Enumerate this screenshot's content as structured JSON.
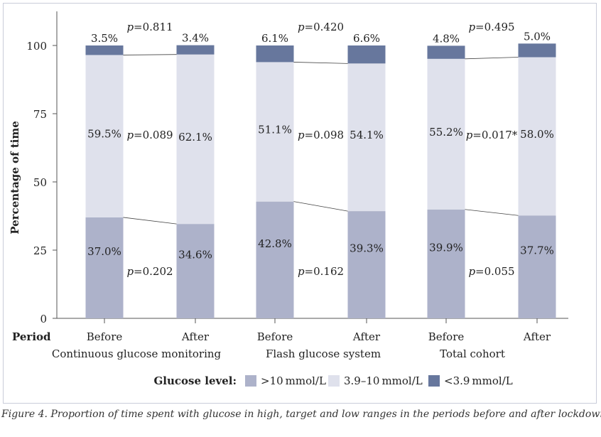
{
  "chart_data": {
    "type": "bar",
    "stacked": true,
    "ylabel": "Percentage of time",
    "ylim": [
      0,
      100
    ],
    "yticks": [
      0,
      25,
      50,
      75,
      100
    ],
    "period_label": "Period",
    "groups": [
      {
        "name": "Continuous glucose monitoring",
        "bars": [
          {
            "period": "Before",
            "high": 37.0,
            "target": 59.5,
            "low": 3.5,
            "high_label": "37.0%",
            "target_label": "59.5%",
            "low_label": "3.5%"
          },
          {
            "period": "After",
            "high": 34.6,
            "target": 62.1,
            "low": 3.4,
            "high_label": "34.6%",
            "target_label": "62.1%",
            "low_label": "3.4%"
          }
        ],
        "p_low": "=0.811",
        "p_target": "=0.089",
        "p_high": "=0.202"
      },
      {
        "name": "Flash glucose system",
        "bars": [
          {
            "period": "Before",
            "high": 42.8,
            "target": 51.1,
            "low": 6.1,
            "high_label": "42.8%",
            "target_label": "51.1%",
            "low_label": "6.1%"
          },
          {
            "period": "After",
            "high": 39.3,
            "target": 54.1,
            "low": 6.6,
            "high_label": "39.3%",
            "target_label": "54.1%",
            "low_label": "6.6%"
          }
        ],
        "p_low": "=0.420",
        "p_target": "=0.098",
        "p_high": "=0.162"
      },
      {
        "name": "Total cohort",
        "bars": [
          {
            "period": "Before",
            "high": 39.9,
            "target": 55.2,
            "low": 4.8,
            "high_label": "39.9%",
            "target_label": "55.2%",
            "low_label": "4.8%"
          },
          {
            "period": "After",
            "high": 37.7,
            "target": 58.0,
            "low": 5.0,
            "high_label": "37.7%",
            "target_label": "58.0%",
            "low_label": "5.0%"
          }
        ],
        "p_low": "=0.495",
        "p_target": "=0.017*",
        "p_high": "=0.055"
      }
    ],
    "p_symbol": "p",
    "legend": {
      "title": "Glucose level:",
      "placement": "bottom",
      "items": [
        {
          "key": "high",
          "label": ">10 mmol/L",
          "color": "#adb2ca"
        },
        {
          "key": "target",
          "label": "3.9–10 mmol/L",
          "color": "#dfe1ec"
        },
        {
          "key": "low",
          "label": "<3.9 mmol/L",
          "color": "#67779d"
        }
      ]
    },
    "grid": false
  },
  "caption": "Figure 4. Proportion of time spent with glucose in high, target and low ranges in the periods before and after lockdown"
}
